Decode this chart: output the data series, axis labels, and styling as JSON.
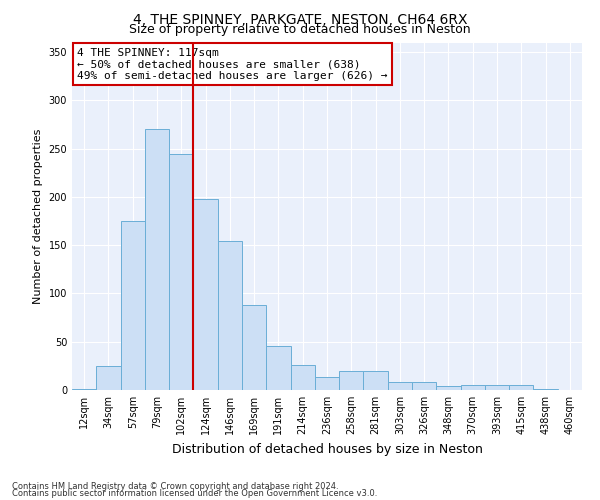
{
  "title": "4, THE SPINNEY, PARKGATE, NESTON, CH64 6RX",
  "subtitle": "Size of property relative to detached houses in Neston",
  "xlabel": "Distribution of detached houses by size in Neston",
  "ylabel": "Number of detached properties",
  "categories": [
    "12sqm",
    "34sqm",
    "57sqm",
    "79sqm",
    "102sqm",
    "124sqm",
    "146sqm",
    "169sqm",
    "191sqm",
    "214sqm",
    "236sqm",
    "258sqm",
    "281sqm",
    "303sqm",
    "326sqm",
    "348sqm",
    "370sqm",
    "393sqm",
    "415sqm",
    "438sqm",
    "460sqm"
  ],
  "values": [
    1,
    25,
    175,
    270,
    245,
    198,
    154,
    88,
    46,
    26,
    13,
    20,
    20,
    8,
    8,
    4,
    5,
    5,
    5,
    1,
    0
  ],
  "bar_color": "#ccdff5",
  "bar_edge_color": "#6aaed6",
  "vline_color": "#cc0000",
  "vline_index": 4.5,
  "annotation_lines": [
    "4 THE SPINNEY: 117sqm",
    "← 50% of detached houses are smaller (638)",
    "49% of semi-detached houses are larger (626) →"
  ],
  "annotation_box_edgecolor": "#cc0000",
  "ylim": [
    0,
    360
  ],
  "yticks": [
    0,
    50,
    100,
    150,
    200,
    250,
    300,
    350
  ],
  "footer1": "Contains HM Land Registry data © Crown copyright and database right 2024.",
  "footer2": "Contains public sector information licensed under the Open Government Licence v3.0.",
  "bg_color": "#eaf0fb",
  "fig_bg_color": "#ffffff",
  "title_fontsize": 10,
  "subtitle_fontsize": 9,
  "ylabel_fontsize": 8,
  "xlabel_fontsize": 9,
  "tick_fontsize": 7,
  "annotation_fontsize": 8,
  "footer_fontsize": 6
}
